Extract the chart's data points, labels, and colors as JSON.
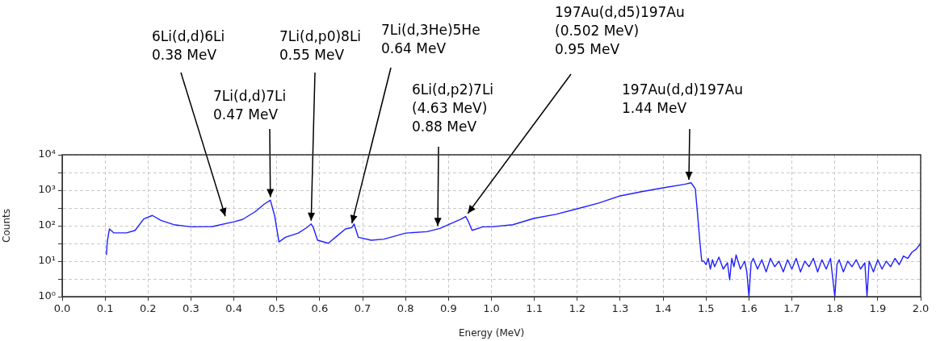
{
  "chart_data": {
    "type": "line",
    "xlabel": "Energy (MeV)",
    "ylabel": "Counts",
    "log": "y",
    "grid": true,
    "marker": "none",
    "line_style": "solid",
    "xlim": [
      0,
      2
    ],
    "ylim": [
      1,
      10000
    ],
    "xticks": [
      {
        "value": 0,
        "label": "0.0"
      },
      {
        "value": 0.1,
        "label": "0.1"
      },
      {
        "value": 0.2,
        "label": "0.2"
      },
      {
        "value": 0.3,
        "label": "0.3"
      },
      {
        "value": 0.4,
        "label": "0.4"
      },
      {
        "value": 0.5,
        "label": "0.5"
      },
      {
        "value": 0.6,
        "label": "0.6"
      },
      {
        "value": 0.7,
        "label": "0.7"
      },
      {
        "value": 0.8,
        "label": "0.8"
      },
      {
        "value": 0.9,
        "label": "0.9"
      },
      {
        "value": 1,
        "label": "1.0"
      },
      {
        "value": 1.1,
        "label": "1.1"
      },
      {
        "value": 1.2,
        "label": "1.2"
      },
      {
        "value": 1.3,
        "label": "1.3"
      },
      {
        "value": 1.4,
        "label": "1.4"
      },
      {
        "value": 1.5,
        "label": "1.5"
      },
      {
        "value": 1.6,
        "label": "1.6"
      },
      {
        "value": 1.7,
        "label": "1.7"
      },
      {
        "value": 1.8,
        "label": "1.8"
      },
      {
        "value": 1.9,
        "label": "1.9"
      },
      {
        "value": 2,
        "label": "2.0"
      }
    ],
    "yticks": [
      {
        "value": 1,
        "label": "10⁰"
      },
      {
        "value": 3.16,
        "label": null
      },
      {
        "value": 10,
        "label": "10¹"
      },
      {
        "value": 31.6,
        "label": null
      },
      {
        "value": 100,
        "label": "10²"
      },
      {
        "value": 316,
        "label": null
      },
      {
        "value": 1000,
        "label": "10³"
      },
      {
        "value": 3162,
        "label": null
      },
      {
        "value": 10000,
        "label": "10⁴"
      }
    ],
    "series": [
      {
        "color": "#2020ff",
        "x": [
          0.103,
          0.105,
          0.11,
          0.12,
          0.15,
          0.17,
          0.19,
          0.21,
          0.23,
          0.26,
          0.3,
          0.35,
          0.4,
          0.42,
          0.45,
          0.47,
          0.485,
          0.495,
          0.505,
          0.52,
          0.55,
          0.57,
          0.58,
          0.585,
          0.595,
          0.62,
          0.64,
          0.66,
          0.675,
          0.68,
          0.69,
          0.72,
          0.75,
          0.8,
          0.85,
          0.88,
          0.9,
          0.93,
          0.94,
          0.945,
          0.955,
          0.98,
          1.0,
          1.05,
          1.1,
          1.15,
          1.2,
          1.25,
          1.3,
          1.35,
          1.4,
          1.45,
          1.465,
          1.475,
          1.48,
          1.485,
          1.49,
          1.495,
          1.5,
          1.505,
          1.51,
          1.515,
          1.52,
          1.53,
          1.54,
          1.55,
          1.555,
          1.56,
          1.565,
          1.57,
          1.58,
          1.59,
          1.595,
          1.6,
          1.605,
          1.61,
          1.62,
          1.63,
          1.64,
          1.65,
          1.66,
          1.67,
          1.68,
          1.69,
          1.7,
          1.71,
          1.72,
          1.73,
          1.74,
          1.75,
          1.76,
          1.77,
          1.78,
          1.79,
          1.8,
          1.805,
          1.81,
          1.82,
          1.83,
          1.84,
          1.85,
          1.86,
          1.87,
          1.875,
          1.88,
          1.89,
          1.9,
          1.91,
          1.92,
          1.93,
          1.94,
          1.95,
          1.96,
          1.97,
          1.98,
          1.99,
          2.0
        ],
        "values": [
          15,
          35,
          81,
          63,
          63,
          74,
          155,
          195,
          142,
          107,
          93,
          95,
          129,
          150,
          250,
          400,
          525,
          190,
          35,
          47,
          62,
          89,
          112,
          89,
          39,
          32,
          51,
          81,
          89,
          112,
          47,
          39,
          42,
          62,
          68,
          84,
          107,
          155,
          182,
          142,
          74,
          93,
          93,
          107,
          162,
          210,
          300,
          435,
          695,
          910,
          1170,
          1470,
          1620,
          1100,
          230,
          43,
          10,
          10,
          8,
          12,
          6,
          11,
          7,
          13,
          6,
          9,
          3,
          12,
          7,
          15,
          6,
          10,
          5,
          1,
          9,
          12,
          6,
          11,
          5,
          12,
          7,
          10,
          5,
          11,
          6,
          12,
          5,
          10,
          7,
          12,
          5,
          11,
          6,
          12,
          1,
          8,
          11,
          5,
          10,
          7,
          11,
          6,
          9,
          1,
          10,
          5,
          11,
          6,
          10,
          7,
          12,
          8,
          14,
          12,
          18,
          22,
          32
        ]
      }
    ],
    "annotations": [
      {
        "text": "6Li(d,d)6Li\n0.38 MeV",
        "x": 0.38,
        "y": 150
      },
      {
        "text": "7Li(d,d)7Li\n0.47 MeV",
        "x": 0.485,
        "y": 520
      },
      {
        "text": "7Li(d,p0)8Li\n0.55 MeV",
        "x": 0.58,
        "y": 112
      },
      {
        "text": "7Li(d,3He)5He\n0.64 MeV",
        "x": 0.675,
        "y": 95
      },
      {
        "text": "6Li(d,p2)7Li\n(4.63 MeV)\n0.88 MeV",
        "x": 0.875,
        "y": 80
      },
      {
        "text": "197Au(d,d5)197Au\n(0.502 MeV)\n0.95 MeV",
        "x": 0.945,
        "y": 180
      },
      {
        "text": "197Au(d,d)197Au\n1.44 MeV",
        "x": 1.46,
        "y": 1600
      }
    ]
  }
}
